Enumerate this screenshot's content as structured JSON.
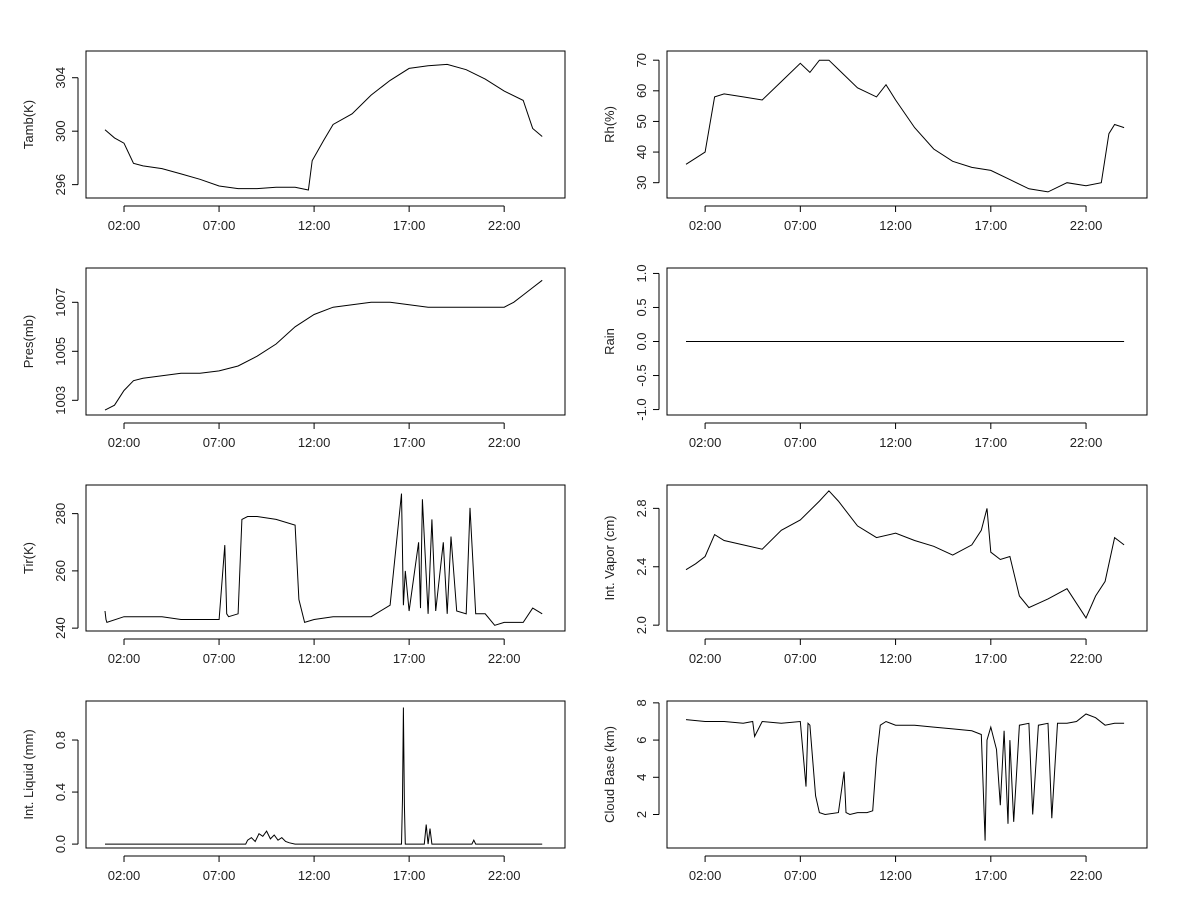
{
  "chart_data": [
    {
      "type": "line",
      "ylabel": "Tamb(K)",
      "x_ticks": [
        "02:00",
        "07:00",
        "12:00",
        "17:00",
        "22:00"
      ],
      "y_ticks": [
        296,
        300,
        304
      ],
      "xlim": [
        0.0,
        25.2
      ],
      "ylim": [
        295,
        306
      ],
      "x": [
        1.0,
        1.5,
        2.0,
        2.5,
        3.0,
        4.0,
        5.0,
        6.0,
        7.0,
        8.0,
        9.0,
        10.0,
        11.0,
        11.7,
        11.9,
        12.5,
        13.0,
        14.0,
        15.0,
        16.0,
        17.0,
        18.0,
        19.0,
        20.0,
        21.0,
        22.0,
        23.0,
        23.5,
        24.0
      ],
      "y": [
        300.1,
        299.5,
        299.1,
        297.6,
        297.4,
        297.2,
        296.8,
        296.4,
        295.9,
        295.7,
        295.7,
        295.8,
        295.8,
        295.6,
        297.8,
        299.3,
        300.5,
        301.3,
        302.7,
        303.8,
        304.7,
        304.9,
        305.0,
        304.6,
        303.9,
        303.0,
        302.3,
        300.2,
        299.6
      ]
    },
    {
      "type": "line",
      "ylabel": "Rh(%)",
      "x_ticks": [
        "02:00",
        "07:00",
        "12:00",
        "17:00",
        "22:00"
      ],
      "y_ticks": [
        30,
        40,
        50,
        60,
        70
      ],
      "xlim": [
        0.0,
        25.2
      ],
      "ylim": [
        25,
        73
      ],
      "x": [
        1.0,
        1.5,
        2.0,
        2.5,
        3.0,
        4.0,
        5.0,
        6.0,
        7.0,
        7.5,
        8.0,
        8.5,
        9.0,
        10.0,
        11.0,
        11.5,
        12.0,
        13.0,
        14.0,
        15.0,
        16.0,
        17.0,
        18.0,
        19.0,
        20.0,
        21.0,
        22.0,
        22.8,
        23.2,
        23.5,
        24.0
      ],
      "y": [
        36,
        38,
        40,
        58,
        59,
        58,
        57,
        63,
        69,
        66,
        70,
        70,
        67,
        61,
        58,
        62,
        57,
        48,
        41,
        37,
        35,
        34,
        31,
        28,
        27,
        30,
        29,
        30,
        46,
        49,
        48
      ]
    },
    {
      "type": "line",
      "ylabel": "Pres(mb)",
      "x_ticks": [
        "02:00",
        "07:00",
        "12:00",
        "17:00",
        "22:00"
      ],
      "y_ticks": [
        1003,
        1005,
        1007
      ],
      "xlim": [
        0.0,
        25.2
      ],
      "ylim": [
        1002.4,
        1008.4
      ],
      "x": [
        1.0,
        1.5,
        2.0,
        2.5,
        3.0,
        4.0,
        5.0,
        6.0,
        7.0,
        8.0,
        9.0,
        10.0,
        11.0,
        12.0,
        13.0,
        14.0,
        15.0,
        16.0,
        17.0,
        18.0,
        19.0,
        20.0,
        21.0,
        22.0,
        22.5,
        23.0,
        23.5,
        24.0
      ],
      "y": [
        1002.6,
        1002.8,
        1003.4,
        1003.8,
        1003.9,
        1004.0,
        1004.1,
        1004.1,
        1004.2,
        1004.4,
        1004.8,
        1005.3,
        1006.0,
        1006.5,
        1006.8,
        1006.9,
        1007.0,
        1007.0,
        1006.9,
        1006.8,
        1006.8,
        1006.8,
        1006.8,
        1006.8,
        1007.0,
        1007.3,
        1007.6,
        1007.9
      ]
    },
    {
      "type": "line",
      "ylabel": "Rain",
      "x_ticks": [
        "02:00",
        "07:00",
        "12:00",
        "17:00",
        "22:00"
      ],
      "y_ticks": [
        "-1.0",
        "-0.5",
        "0.0",
        "0.5",
        "1.0"
      ],
      "xlim": [
        0.0,
        25.2
      ],
      "ylim": [
        -1.08,
        1.08
      ],
      "x": [
        1.0,
        24.0
      ],
      "y": [
        0.0,
        0.0
      ]
    },
    {
      "type": "line",
      "ylabel": "Tir(K)",
      "x_ticks": [
        "02:00",
        "07:00",
        "12:00",
        "17:00",
        "22:00"
      ],
      "y_ticks": [
        240,
        260,
        280
      ],
      "xlim": [
        0.0,
        25.2
      ],
      "ylim": [
        239,
        290
      ],
      "x": [
        1.0,
        1.05,
        1.1,
        2.0,
        3.0,
        4.0,
        5.0,
        6.0,
        7.0,
        7.3,
        7.4,
        7.5,
        8.0,
        8.2,
        8.5,
        9.0,
        10.0,
        11.0,
        11.2,
        11.5,
        12.0,
        13.0,
        14.0,
        15.0,
        16.0,
        16.6,
        16.7,
        16.8,
        17.0,
        17.5,
        17.6,
        17.7,
        18.0,
        18.2,
        18.4,
        18.8,
        19.0,
        19.2,
        19.5,
        20.0,
        20.2,
        20.5,
        21.0,
        21.5,
        22.0,
        23.0,
        23.5,
        24.0
      ],
      "y": [
        246,
        243,
        242,
        244,
        244,
        244,
        243,
        243,
        243,
        269,
        245,
        244,
        245,
        278,
        279,
        279,
        278,
        276,
        250,
        242,
        243,
        244,
        244,
        244,
        248,
        287,
        248,
        260,
        246,
        270,
        247,
        285,
        245,
        278,
        246,
        270,
        245,
        272,
        246,
        245,
        282,
        245,
        245,
        241,
        242,
        242,
        247,
        245
      ]
    },
    {
      "type": "line",
      "ylabel": "Int. Vapor (cm)",
      "x_ticks": [
        "02:00",
        "07:00",
        "12:00",
        "17:00",
        "22:00"
      ],
      "y_ticks": [
        "2.0",
        "2.4",
        "2.8"
      ],
      "xlim": [
        0.0,
        25.2
      ],
      "ylim": [
        1.96,
        2.96
      ],
      "x": [
        1.0,
        1.5,
        2.0,
        2.5,
        3.0,
        4.0,
        5.0,
        6.0,
        7.0,
        8.0,
        8.5,
        9.0,
        10.0,
        11.0,
        12.0,
        13.0,
        14.0,
        15.0,
        16.0,
        16.5,
        16.8,
        17.0,
        17.5,
        18.0,
        18.5,
        19.0,
        19.5,
        20.0,
        21.0,
        22.0,
        22.5,
        23.0,
        23.5,
        24.0
      ],
      "y": [
        2.38,
        2.42,
        2.47,
        2.62,
        2.58,
        2.55,
        2.52,
        2.65,
        2.72,
        2.85,
        2.92,
        2.85,
        2.68,
        2.6,
        2.63,
        2.58,
        2.54,
        2.48,
        2.55,
        2.65,
        2.8,
        2.5,
        2.45,
        2.47,
        2.2,
        2.12,
        2.15,
        2.18,
        2.25,
        2.05,
        2.2,
        2.3,
        2.6,
        2.55
      ]
    },
    {
      "type": "line",
      "ylabel": "Int. Liquid (mm)",
      "x_ticks": [
        "02:00",
        "07:00",
        "12:00",
        "17:00",
        "22:00"
      ],
      "y_ticks": [
        "0.0",
        "0.4",
        "0.8"
      ],
      "xlim": [
        0.0,
        25.2
      ],
      "ylim": [
        -0.03,
        1.1
      ],
      "x": [
        1.0,
        8.0,
        8.4,
        8.5,
        8.7,
        8.9,
        9.1,
        9.3,
        9.5,
        9.7,
        9.9,
        10.1,
        10.3,
        10.5,
        10.7,
        11.0,
        16.0,
        16.6,
        16.65,
        16.7,
        16.75,
        16.8,
        17.0,
        17.8,
        17.9,
        18.0,
        18.1,
        18.2,
        18.3,
        20.0,
        20.3,
        20.4,
        20.5,
        24.0
      ],
      "y": [
        0.0,
        0.0,
        0.0,
        0.03,
        0.05,
        0.02,
        0.08,
        0.06,
        0.1,
        0.04,
        0.07,
        0.03,
        0.05,
        0.02,
        0.01,
        0.0,
        0.0,
        0.0,
        0.35,
        1.05,
        0.3,
        0.0,
        0.0,
        0.0,
        0.15,
        0.0,
        0.12,
        0.0,
        0.0,
        0.0,
        0.0,
        0.03,
        0.0,
        0.0
      ]
    },
    {
      "type": "line",
      "ylabel": "Cloud Base (km)",
      "x_ticks": [
        "02:00",
        "07:00",
        "12:00",
        "17:00",
        "22:00"
      ],
      "y_ticks": [
        2,
        4,
        6,
        8
      ],
      "xlim": [
        0.0,
        25.2
      ],
      "ylim": [
        0.2,
        8.1
      ],
      "x": [
        1.0,
        2.0,
        3.0,
        4.0,
        4.5,
        4.6,
        5.0,
        6.0,
        7.0,
        7.3,
        7.4,
        7.5,
        7.8,
        8.0,
        8.3,
        9.0,
        9.3,
        9.4,
        9.6,
        10.0,
        10.5,
        10.8,
        11.0,
        11.2,
        11.5,
        12.0,
        13.0,
        14.0,
        15.0,
        16.0,
        16.5,
        16.7,
        16.8,
        17.0,
        17.3,
        17.5,
        17.7,
        17.9,
        18.0,
        18.2,
        18.5,
        19.0,
        19.2,
        19.5,
        20.0,
        20.2,
        20.5,
        21.0,
        21.5,
        22.0,
        22.5,
        23.0,
        23.5,
        24.0
      ],
      "y": [
        7.1,
        7.0,
        7.0,
        6.9,
        7.0,
        6.2,
        7.0,
        6.9,
        7.0,
        3.5,
        6.9,
        6.8,
        3.0,
        2.1,
        2.0,
        2.1,
        4.3,
        2.1,
        2.0,
        2.1,
        2.1,
        2.2,
        5.0,
        6.8,
        7.0,
        6.8,
        6.8,
        6.7,
        6.6,
        6.5,
        6.3,
        0.6,
        6.0,
        6.7,
        5.5,
        2.5,
        6.5,
        1.5,
        6.0,
        1.6,
        6.8,
        6.9,
        2.0,
        6.8,
        6.9,
        1.8,
        6.9,
        6.9,
        7.0,
        7.4,
        7.2,
        6.8,
        6.9,
        6.9
      ]
    }
  ]
}
